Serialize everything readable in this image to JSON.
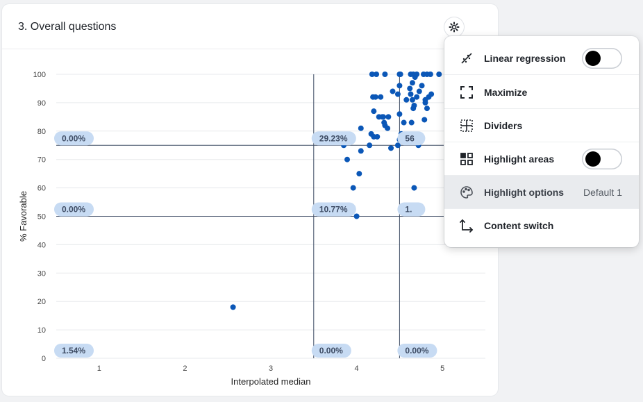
{
  "card": {
    "title": "3. Overall questions"
  },
  "menu": {
    "items": [
      {
        "label": "Linear regression",
        "icon": "trend-line-icon",
        "toggle": false
      },
      {
        "label": "Maximize",
        "icon": "maximize-icon"
      },
      {
        "label": "Dividers",
        "icon": "dividers-icon"
      },
      {
        "label": "Highlight areas",
        "icon": "highlight-areas-icon",
        "toggle": false
      },
      {
        "label": "Highlight options",
        "icon": "palette-icon",
        "value": "Default 1",
        "active": true
      },
      {
        "label": "Content switch",
        "icon": "content-switch-icon"
      }
    ]
  },
  "colors": {
    "point": "#0b57b7",
    "divider": "#3d4b63",
    "label_bg": "#c7dbf3",
    "label_text": "#3d4b63",
    "grid": "#e7e9ec"
  },
  "chart_data": {
    "type": "scatter",
    "xlabel": "Interpolated median",
    "ylabel": "% Favorable",
    "xlim": [
      0.5,
      5.5
    ],
    "ylim": [
      0,
      100
    ],
    "x_ticks": [
      "1",
      "2",
      "3",
      "4",
      "5"
    ],
    "y_ticks": [
      "0",
      "10",
      "20",
      "30",
      "40",
      "50",
      "60",
      "70",
      "80",
      "90",
      "100"
    ],
    "dividers": {
      "x": [
        3.5,
        4.5
      ],
      "y": [
        50,
        75
      ]
    },
    "quadrant_labels": [
      {
        "text": "0.00%",
        "x": 0.5,
        "y": 75
      },
      {
        "text": "29.23%",
        "x": 3.5,
        "y": 75
      },
      {
        "text": "56",
        "x": 4.5,
        "y": 75
      },
      {
        "text": "0.00%",
        "x": 0.5,
        "y": 50
      },
      {
        "text": "10.77%",
        "x": 3.5,
        "y": 50
      },
      {
        "text": "1.",
        "x": 4.5,
        "y": 50
      },
      {
        "text": "1.54%",
        "x": 0.5,
        "y": 0
      },
      {
        "text": "0.00%",
        "x": 3.5,
        "y": 0
      },
      {
        "text": "0.00%",
        "x": 4.5,
        "y": 0
      }
    ],
    "points": [
      [
        2.56,
        18
      ],
      [
        4.0,
        50
      ],
      [
        3.96,
        60
      ],
      [
        4.03,
        65
      ],
      [
        3.89,
        70
      ],
      [
        3.85,
        75
      ],
      [
        4.05,
        73
      ],
      [
        4.15,
        75
      ],
      [
        4.05,
        81
      ],
      [
        4.17,
        79
      ],
      [
        4.2,
        78
      ],
      [
        4.24,
        78
      ],
      [
        4.19,
        92
      ],
      [
        4.22,
        92
      ],
      [
        4.28,
        92
      ],
      [
        4.2,
        87
      ],
      [
        4.26,
        85
      ],
      [
        4.3,
        85
      ],
      [
        4.32,
        83
      ],
      [
        4.33,
        82
      ],
      [
        4.36,
        81
      ],
      [
        4.31,
        85
      ],
      [
        4.37,
        85
      ],
      [
        4.4,
        74
      ],
      [
        4.48,
        75
      ],
      [
        4.5,
        77
      ],
      [
        4.52,
        79
      ],
      [
        4.55,
        83
      ],
      [
        4.5,
        86
      ],
      [
        4.42,
        94
      ],
      [
        4.48,
        93
      ],
      [
        4.5,
        96
      ],
      [
        4.18,
        100
      ],
      [
        4.23,
        100
      ],
      [
        4.33,
        100
      ],
      [
        4.5,
        100
      ],
      [
        4.51,
        100
      ],
      [
        4.58,
        91
      ],
      [
        4.63,
        93
      ],
      [
        4.62,
        95
      ],
      [
        4.65,
        97
      ],
      [
        4.68,
        99
      ],
      [
        4.65,
        91
      ],
      [
        4.7,
        92
      ],
      [
        4.67,
        89
      ],
      [
        4.66,
        88
      ],
      [
        4.64,
        83
      ],
      [
        4.73,
        94
      ],
      [
        4.76,
        96
      ],
      [
        4.8,
        91
      ],
      [
        4.8,
        90
      ],
      [
        4.84,
        92
      ],
      [
        4.87,
        93
      ],
      [
        4.82,
        88
      ],
      [
        4.79,
        84
      ],
      [
        4.63,
        100
      ],
      [
        4.66,
        100
      ],
      [
        4.7,
        100
      ],
      [
        4.78,
        100
      ],
      [
        4.82,
        100
      ],
      [
        4.86,
        100
      ],
      [
        4.96,
        100
      ],
      [
        4.72,
        75
      ],
      [
        4.67,
        60
      ]
    ]
  }
}
